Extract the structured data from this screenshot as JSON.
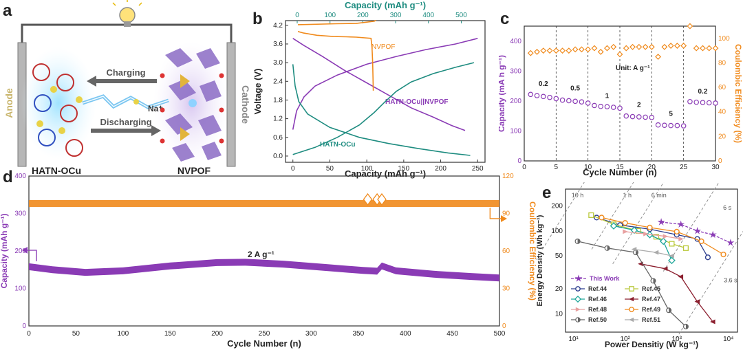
{
  "panel_labels": [
    "a",
    "b",
    "c",
    "d",
    "e"
  ],
  "schematic": {
    "anode": "Anode",
    "cathode": "Cathode",
    "charging": "Charging",
    "discharging": "Discharging",
    "ion": "Na⁺",
    "left_material": "HATN-OCu",
    "right_material": "NVPOF",
    "colors": {
      "frame": "#555555",
      "left_glow": "#7fd3f5",
      "right_poly": "#7a5fb0",
      "arrow": "#666666",
      "bolt": "#5ab8ee"
    }
  },
  "chart_data": [
    {
      "id": "b",
      "type": "line",
      "title": "",
      "xlabel": "Capacity (mAh g⁻¹)",
      "x2label": "Capacity (mAh g⁻¹)",
      "ylabel": "Voltage (V)",
      "xlim": [
        -10,
        260
      ],
      "x2lim": [
        0,
        520
      ],
      "ylim": [
        -0.2,
        4.35
      ],
      "xticks": [
        0,
        50,
        100,
        150,
        200,
        250
      ],
      "x2ticks": [
        0,
        100,
        200,
        300,
        400,
        500
      ],
      "yticks": [
        0.0,
        0.6,
        1.2,
        1.8,
        2.4,
        3.0,
        3.6,
        4.2
      ],
      "ytick_labels": [
        "0.0",
        "0.6",
        "1.2",
        "1.8",
        "2.4",
        "3.0",
        "3.6",
        "4.2"
      ],
      "annotations": [
        "NVPOF",
        "HATN-OCu||NVPOF",
        "HATN-OCu"
      ],
      "series": [
        {
          "axis": "x",
          "color": "#8a3bb5",
          "points": [
            [
              0,
              0.85
            ],
            [
              5,
              1.45
            ],
            [
              15,
              1.9
            ],
            [
              30,
              2.25
            ],
            [
              60,
              2.6
            ],
            [
              100,
              2.95
            ],
            [
              140,
              3.2
            ],
            [
              180,
              3.42
            ],
            [
              220,
              3.6
            ],
            [
              250,
              3.78
            ]
          ]
        },
        {
          "axis": "x",
          "color": "#8a3bb5",
          "points": [
            [
              0,
              3.78
            ],
            [
              15,
              3.55
            ],
            [
              40,
              3.2
            ],
            [
              70,
              2.75
            ],
            [
              100,
              2.35
            ],
            [
              130,
              1.95
            ],
            [
              160,
              1.55
            ],
            [
              190,
              1.25
            ],
            [
              215,
              0.98
            ],
            [
              233,
              0.82
            ]
          ]
        },
        {
          "axis": "x",
          "color": "#1e8c80",
          "points": [
            [
              0,
              0.05
            ],
            [
              30,
              0.28
            ],
            [
              60,
              0.6
            ],
            [
              90,
              1.0
            ],
            [
              110,
              1.4
            ],
            [
              125,
              1.75
            ],
            [
              140,
              2.08
            ],
            [
              160,
              2.38
            ],
            [
              190,
              2.65
            ],
            [
              220,
              2.85
            ],
            [
              245,
              3.0
            ]
          ]
        },
        {
          "axis": "x",
          "color": "#1e8c80",
          "points": [
            [
              0,
              2.95
            ],
            [
              3,
              2.25
            ],
            [
              8,
              1.75
            ],
            [
              20,
              1.35
            ],
            [
              50,
              0.92
            ],
            [
              90,
              0.6
            ],
            [
              130,
              0.4
            ],
            [
              170,
              0.24
            ],
            [
              210,
              0.1
            ],
            [
              240,
              0.02
            ]
          ]
        },
        {
          "axis": "x2",
          "color": "#f08a1c",
          "points": [
            [
              2,
              4.22
            ],
            [
              120,
              4.25
            ],
            [
              180,
              4.26
            ],
            [
              235,
              4.33
            ],
            [
              240,
              4.36
            ]
          ]
        },
        {
          "axis": "x2",
          "color": "#f08a1c",
          "points": [
            [
              2,
              4.0
            ],
            [
              20,
              3.95
            ],
            [
              60,
              3.88
            ],
            [
              110,
              3.84
            ],
            [
              150,
              3.83
            ],
            [
              180,
              3.82
            ],
            [
              225,
              3.78
            ],
            [
              228,
              3.5
            ],
            [
              230,
              3.0
            ],
            [
              232,
              2.1
            ]
          ]
        }
      ]
    },
    {
      "id": "c",
      "type": "scatter",
      "title": "",
      "xlabel": "Cycle Number (n)",
      "ylabel": "Capacity (mA h g⁻¹)",
      "y2label": "Coulombic Efficiency (%)",
      "xlim": [
        0,
        30
      ],
      "ylim": [
        0,
        450
      ],
      "y2lim": [
        0,
        110
      ],
      "xticks": [
        0,
        5,
        10,
        15,
        20,
        25,
        30
      ],
      "yticks": [
        0,
        100,
        200,
        300,
        400
      ],
      "y2ticks": [
        0,
        20,
        40,
        60,
        80,
        100
      ],
      "rate_labels": [
        "0.2",
        "0.5",
        "1",
        "2",
        "5",
        "0.2"
      ],
      "unit_label": "Unit: A g⁻¹",
      "capacity": [
        222,
        218,
        215,
        212,
        208,
        203,
        201,
        199,
        197,
        193,
        185,
        182,
        181,
        179,
        176,
        150,
        148,
        147,
        146,
        145,
        120,
        119,
        118,
        118,
        117,
        198,
        196,
        195,
        194,
        193
      ],
      "efficiency": [
        88,
        89,
        90,
        90,
        90,
        90,
        90,
        91,
        91,
        91,
        92,
        89,
        92,
        93,
        87,
        92,
        93,
        93,
        93,
        93,
        85,
        93,
        94,
        94,
        94,
        110,
        92,
        92,
        92,
        92
      ],
      "colors": {
        "capacity": "#8a3bb5",
        "efficiency": "#f08a1c"
      }
    },
    {
      "id": "d",
      "type": "scatter",
      "title": "",
      "xlabel": "Cycle Number (n)",
      "ylabel": "Capacity (mAh g⁻¹)",
      "y2label": "Coulombic Efficiency (%)",
      "annotation": "2 A g⁻¹",
      "xlim": [
        0,
        500
      ],
      "ylim": [
        0,
        400
      ],
      "y2lim": [
        0,
        120
      ],
      "xticks": [
        0,
        50,
        100,
        150,
        200,
        250,
        300,
        350,
        400,
        450,
        500
      ],
      "yticks": [
        0,
        100,
        200,
        300,
        400
      ],
      "y2ticks": [
        0,
        30,
        60,
        90,
        120
      ],
      "capacity_curve": [
        [
          0,
          158
        ],
        [
          25,
          150
        ],
        [
          60,
          143
        ],
        [
          100,
          147
        ],
        [
          150,
          160
        ],
        [
          200,
          169
        ],
        [
          230,
          170
        ],
        [
          270,
          165
        ],
        [
          320,
          155
        ],
        [
          355,
          148
        ],
        [
          370,
          146
        ],
        [
          375,
          160
        ],
        [
          390,
          147
        ],
        [
          430,
          138
        ],
        [
          470,
          132
        ],
        [
          500,
          128
        ]
      ],
      "efficiency_value": 98,
      "efficiency_spike_cycles": [
        360,
        370,
        375
      ],
      "colors": {
        "capacity": "#8a3bb5",
        "efficiency": "#f08a1c"
      }
    },
    {
      "id": "e",
      "type": "line",
      "title": "",
      "xlabel": "Power Densitiy (W kg⁻¹)",
      "ylabel": "Energy Density (Wh kg⁻¹)",
      "xscale": "log",
      "yscale": "log",
      "xlim": [
        7,
        15000
      ],
      "ylim": [
        6,
        320
      ],
      "xticks": [
        10,
        100,
        1000,
        10000
      ],
      "xtick_labels": [
        "10¹",
        "10²",
        "10³",
        "10⁴"
      ],
      "yticks": [
        10,
        20,
        50,
        100,
        200
      ],
      "ytick_labels": [
        "10",
        "20",
        "50",
        "100",
        "200"
      ],
      "time_lines": [
        "10 h",
        "1 h",
        "6 min",
        "6 s",
        "3.6 s"
      ],
      "series": [
        {
          "name": "This Work",
          "marker": "star",
          "color": "#8a3bb5",
          "dashed": true,
          "points": [
            [
              500,
              128
            ],
            [
              1200,
              120
            ],
            [
              2500,
              100
            ],
            [
              5000,
              90
            ],
            [
              11000,
              72
            ]
          ]
        },
        {
          "name": "Ref.44",
          "marker": "circle",
          "color": "#2e3f8f",
          "points": [
            [
              28,
              145
            ],
            [
              80,
              118
            ],
            [
              300,
              105
            ],
            [
              1000,
              90
            ],
            [
              2500,
              80
            ],
            [
              4000,
              48
            ]
          ]
        },
        {
          "name": "Ref.45",
          "marker": "square",
          "color": "#b9c83a",
          "points": [
            [
              22,
              155
            ],
            [
              60,
              120
            ],
            [
              180,
              100
            ],
            [
              400,
              85
            ],
            [
              800,
              70
            ],
            [
              1500,
              62
            ]
          ]
        },
        {
          "name": "Ref.46",
          "marker": "diamond",
          "color": "#1fa79a",
          "points": [
            [
              60,
              115
            ],
            [
              150,
              102
            ],
            [
              300,
              90
            ],
            [
              550,
              75
            ],
            [
              800,
              44
            ]
          ]
        },
        {
          "name": "Ref.47",
          "marker": "triangle-left",
          "color": "#8b1e2e",
          "points": [
            [
              200,
              40
            ],
            [
              600,
              35
            ],
            [
              1200,
              28
            ],
            [
              2500,
              14
            ],
            [
              5000,
              8
            ]
          ]
        },
        {
          "name": "Ref.48",
          "marker": "triangle-right",
          "color": "#e8a0a0",
          "points": [
            [
              100,
              98
            ],
            [
              250,
              92
            ],
            [
              600,
              86
            ],
            [
              1200,
              80
            ]
          ]
        },
        {
          "name": "Ref.49",
          "marker": "circle",
          "color": "#f08a1c",
          "points": [
            [
              35,
              145
            ],
            [
              100,
              125
            ],
            [
              300,
              110
            ],
            [
              1000,
              98
            ],
            [
              3000,
              75
            ],
            [
              8000,
              52
            ]
          ]
        },
        {
          "name": "Ref.50",
          "marker": "half-circle",
          "color": "#666666",
          "points": [
            [
              12,
              75
            ],
            [
              45,
              62
            ],
            [
              160,
              55
            ],
            [
              350,
              25
            ],
            [
              700,
              11
            ],
            [
              1500,
              7
            ]
          ]
        },
        {
          "name": "Ref.51",
          "marker": "triangle-left",
          "color": "#aaaaaa",
          "points": [
            [
              150,
              60
            ],
            [
              400,
              55
            ],
            [
              800,
              50
            ]
          ]
        }
      ]
    }
  ]
}
